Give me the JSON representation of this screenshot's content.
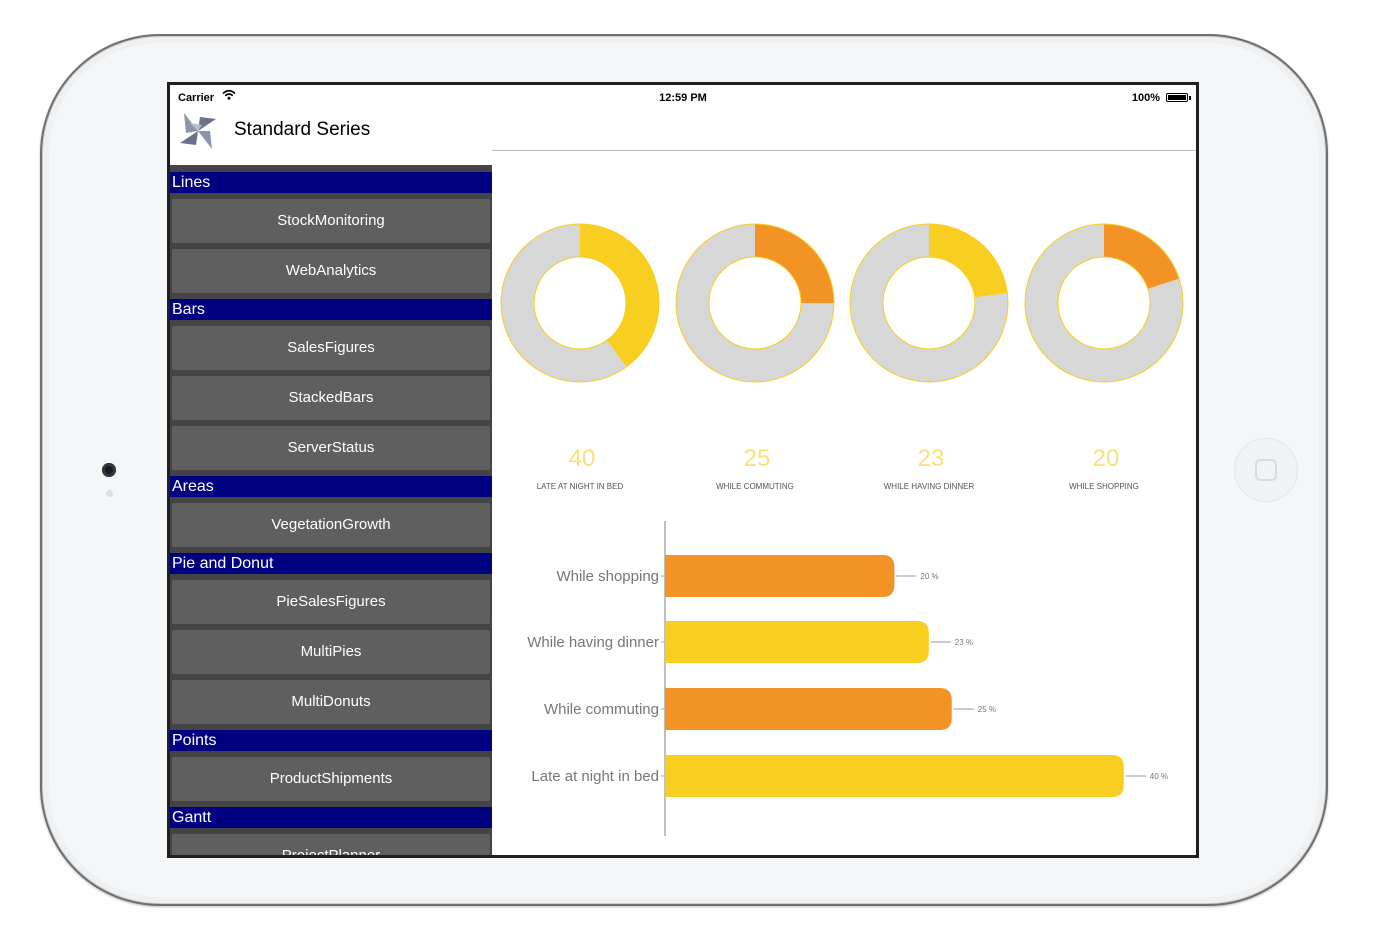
{
  "status_bar": {
    "carrier": "Carrier",
    "time": "12:59 PM",
    "battery": "100%"
  },
  "nav": {
    "title": "Standard Series"
  },
  "sidebar": {
    "sections": [
      {
        "title": "Lines",
        "items": [
          "StockMonitoring",
          "WebAnalytics"
        ]
      },
      {
        "title": "Bars",
        "items": [
          "SalesFigures",
          "StackedBars",
          "ServerStatus"
        ]
      },
      {
        "title": "Areas",
        "items": [
          "VegetationGrowth"
        ]
      },
      {
        "title": "Pie and Donut",
        "items": [
          "PieSalesFigures",
          "MultiPies",
          "MultiDonuts"
        ]
      },
      {
        "title": "Points",
        "items": [
          "ProductShipments"
        ]
      },
      {
        "title": "Gantt",
        "items": [
          "ProjectPlanner"
        ]
      }
    ]
  },
  "colors": {
    "accent_yellow": "#f8ce20",
    "accent_orange": "#f39325",
    "track_gray": "#d7d7d7",
    "section_blue": "#000080",
    "button_gray": "#5f5f5f"
  },
  "chart_data": [
    {
      "type": "donut",
      "series": [
        {
          "value": 40,
          "label": "LATE AT NIGHT IN BED",
          "color": "#f8ce20"
        },
        {
          "value": 25,
          "label": "WHILE COMMUTING",
          "color": "#f39325"
        },
        {
          "value": 23,
          "label": "WHILE HAVING DINNER",
          "color": "#f8ce20"
        },
        {
          "value": 20,
          "label": "WHILE SHOPPING",
          "color": "#f39325"
        }
      ],
      "max": 100
    },
    {
      "type": "bar",
      "orientation": "horizontal",
      "categories": [
        "While shopping",
        "While having dinner",
        "While commuting",
        "Late at night in bed"
      ],
      "values": [
        20,
        23,
        25,
        40
      ],
      "value_labels": [
        "20 %",
        "23 %",
        "25 %",
        "40 %"
      ],
      "colors": [
        "#f39325",
        "#f8ce20",
        "#f39325",
        "#f8ce20"
      ]
    }
  ]
}
